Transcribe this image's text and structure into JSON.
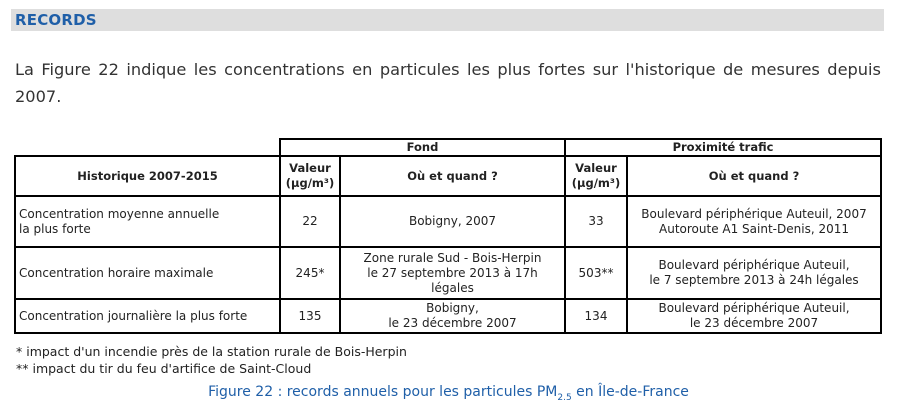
{
  "section": {
    "title": "RECORDS"
  },
  "intro": {
    "text": "La Figure 22 indique les concentrations en particules les plus fortes sur l'historique de mesures depuis 2007."
  },
  "table": {
    "group_fond": "Fond",
    "group_trafic": "Proximité trafic",
    "col_historique": "Historique 2007-2015",
    "col_valeur_line1": "Valeur",
    "col_valeur_line2": "(µg/m³)",
    "col_ou_quand": "Où et quand ?",
    "rows": [
      {
        "label_line1": "Concentration moyenne annuelle",
        "label_line2": "la plus forte",
        "fond_valeur": "22",
        "fond_lieu_line1": "Bobigny, 2007",
        "trafic_valeur": "33",
        "trafic_lieu_line1": "Boulevard périphérique Auteuil, 2007",
        "trafic_lieu_line2": "Autoroute A1 Saint-Denis, 2011"
      },
      {
        "label_line1": "Concentration horaire maximale",
        "fond_valeur": "245*",
        "fond_lieu_line1": "Zone rurale Sud - Bois-Herpin",
        "fond_lieu_line2": "le 27 septembre 2013 à 17h",
        "fond_lieu_line3": "légales",
        "trafic_valeur": "503**",
        "trafic_lieu_line1": "Boulevard périphérique Auteuil,",
        "trafic_lieu_line2": "le 7 septembre 2013 à 24h légales"
      },
      {
        "label_line1": "Concentration journalière la plus forte",
        "fond_valeur": "135",
        "fond_lieu_line1": "Bobigny,",
        "fond_lieu_line2": "le 23 décembre 2007",
        "trafic_valeur": "134",
        "trafic_lieu_line1": "Boulevard périphérique Auteuil,",
        "trafic_lieu_line2": "le 23 décembre 2007"
      }
    ]
  },
  "notes": [
    "* impact d'un incendie près de la station rurale de Bois-Herpin",
    "** impact du tir du feu d'artifice de Saint-Cloud"
  ],
  "caption": {
    "before": "Figure 22 : records annuels pour les particules PM",
    "sub": "2.5",
    "after": " en Île-de-France"
  }
}
